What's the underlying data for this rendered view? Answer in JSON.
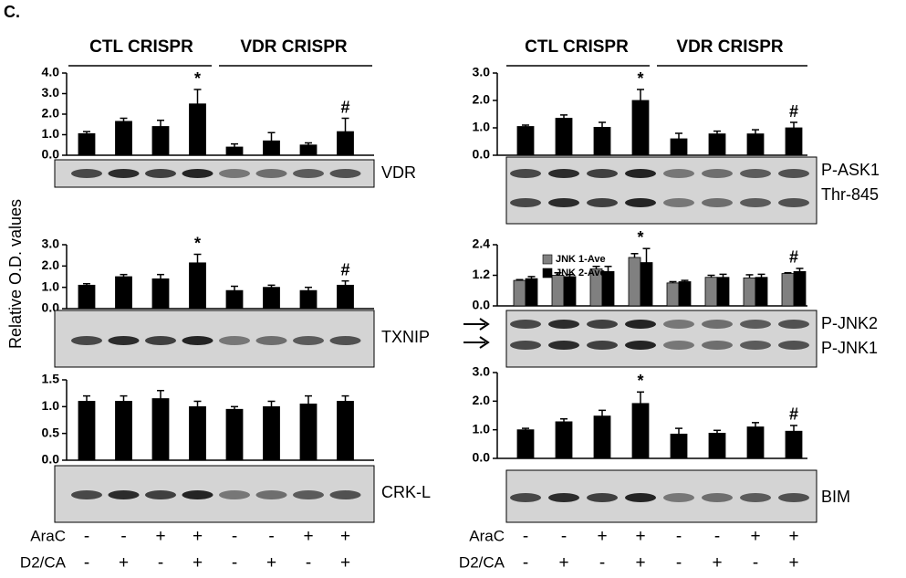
{
  "panel_label": "C.",
  "y_axis_label": "Relative O.D. values",
  "groups": [
    "CTL CRISPR",
    "VDR CRISPR"
  ],
  "treatments": [
    {
      "name": "AraC",
      "signs": [
        "-",
        "-",
        "+",
        "+",
        "-",
        "-",
        "+",
        "+"
      ]
    },
    {
      "name": "D2/CA",
      "signs": [
        "-",
        "+",
        "-",
        "+",
        "-",
        "+",
        "-",
        "+"
      ]
    }
  ],
  "chart_data": [
    {
      "type": "bar",
      "blot_labels": [
        "VDR"
      ],
      "ylim": [
        0,
        4
      ],
      "yticks": [
        {
          "value": 0,
          "label": "0.0"
        },
        {
          "value": 1,
          "label": "1.0"
        },
        {
          "value": 2,
          "label": "2.0"
        },
        {
          "value": 3,
          "label": "3.0"
        },
        {
          "value": 4,
          "label": "4.0"
        }
      ],
      "series": [
        {
          "color": "#000000",
          "values": [
            1.05,
            1.65,
            1.4,
            2.5,
            0.4,
            0.7,
            0.5,
            1.15
          ],
          "errors": [
            0.1,
            0.15,
            0.3,
            0.7,
            0.15,
            0.4,
            0.1,
            0.65
          ]
        }
      ],
      "markers": [
        null,
        null,
        null,
        "*",
        null,
        null,
        null,
        "#"
      ]
    },
    {
      "type": "bar",
      "blot_labels": [
        "TXNIP"
      ],
      "ylim": [
        0,
        3
      ],
      "yticks": [
        {
          "value": 0,
          "label": "0.0"
        },
        {
          "value": 1,
          "label": "1.0"
        },
        {
          "value": 2,
          "label": "2.0"
        },
        {
          "value": 3,
          "label": "3.0"
        }
      ],
      "series": [
        {
          "color": "#000000",
          "values": [
            1.1,
            1.5,
            1.4,
            2.15,
            0.85,
            1.0,
            0.85,
            1.1
          ],
          "errors": [
            0.07,
            0.1,
            0.2,
            0.4,
            0.2,
            0.1,
            0.15,
            0.2
          ]
        }
      ],
      "markers": [
        null,
        null,
        null,
        "*",
        null,
        null,
        null,
        "#"
      ]
    },
    {
      "type": "bar",
      "blot_labels": [
        "CRK-L"
      ],
      "ylim": [
        0,
        1.5
      ],
      "yticks": [
        {
          "value": 0,
          "label": "0.0"
        },
        {
          "value": 0.5,
          "label": "0.5"
        },
        {
          "value": 1,
          "label": "1.0"
        },
        {
          "value": 1.5,
          "label": "1.5"
        }
      ],
      "series": [
        {
          "color": "#000000",
          "values": [
            1.1,
            1.1,
            1.15,
            1.0,
            0.95,
            1.0,
            1.05,
            1.1
          ],
          "errors": [
            0.1,
            0.1,
            0.15,
            0.1,
            0.05,
            0.1,
            0.15,
            0.1
          ]
        }
      ],
      "markers": [
        null,
        null,
        null,
        null,
        null,
        null,
        null,
        null
      ]
    },
    {
      "type": "bar",
      "blot_labels": [
        "P-ASK1",
        "Thr-845"
      ],
      "ylim": [
        0,
        3
      ],
      "yticks": [
        {
          "value": 0,
          "label": "0.0"
        },
        {
          "value": 1,
          "label": "1.0"
        },
        {
          "value": 2,
          "label": "2.0"
        },
        {
          "value": 3,
          "label": "3.0"
        }
      ],
      "series": [
        {
          "color": "#000000",
          "values": [
            1.05,
            1.35,
            1.02,
            2.0,
            0.6,
            0.78,
            0.78,
            1.0
          ],
          "errors": [
            0.05,
            0.12,
            0.18,
            0.4,
            0.2,
            0.1,
            0.15,
            0.2
          ]
        }
      ],
      "markers": [
        null,
        null,
        null,
        "*",
        null,
        null,
        null,
        "#"
      ]
    },
    {
      "type": "bar",
      "blot_labels": [
        "P-JNK2",
        "P-JNK1"
      ],
      "ylim": [
        0,
        2.4
      ],
      "legend": "top-left",
      "yticks": [
        {
          "value": 0,
          "label": "0.0"
        },
        {
          "value": 1.2,
          "label": "1.2"
        },
        {
          "value": 2.4,
          "label": "2.4"
        }
      ],
      "series": [
        {
          "name": "JNK 1-Ave",
          "color": "#808080",
          "values": [
            1.0,
            1.2,
            1.45,
            1.9,
            0.9,
            1.12,
            1.1,
            1.27
          ],
          "errors": [
            0.03,
            0.1,
            0.1,
            0.15,
            0.05,
            0.08,
            0.12,
            0.03
          ]
        },
        {
          "name": "JNK 2-Ave",
          "color": "#000000",
          "values": [
            1.07,
            1.15,
            1.35,
            1.7,
            0.95,
            1.12,
            1.12,
            1.35
          ],
          "errors": [
            0.08,
            0.08,
            0.2,
            0.55,
            0.05,
            0.12,
            0.12,
            0.12
          ]
        }
      ],
      "markers": [
        null,
        null,
        null,
        "*",
        null,
        null,
        null,
        "#"
      ]
    },
    {
      "type": "bar",
      "blot_labels": [
        "BIM"
      ],
      "ylim": [
        0,
        3
      ],
      "yticks": [
        {
          "value": 0,
          "label": "0.0"
        },
        {
          "value": 1,
          "label": "1.0"
        },
        {
          "value": 2,
          "label": "2.0"
        },
        {
          "value": 3,
          "label": "3.0"
        }
      ],
      "series": [
        {
          "color": "#000000",
          "values": [
            1.0,
            1.28,
            1.48,
            1.92,
            0.85,
            0.88,
            1.1,
            0.95
          ],
          "errors": [
            0.05,
            0.1,
            0.2,
            0.4,
            0.2,
            0.1,
            0.15,
            0.2
          ]
        }
      ],
      "markers": [
        null,
        null,
        null,
        "*",
        null,
        null,
        null,
        "#"
      ]
    }
  ]
}
